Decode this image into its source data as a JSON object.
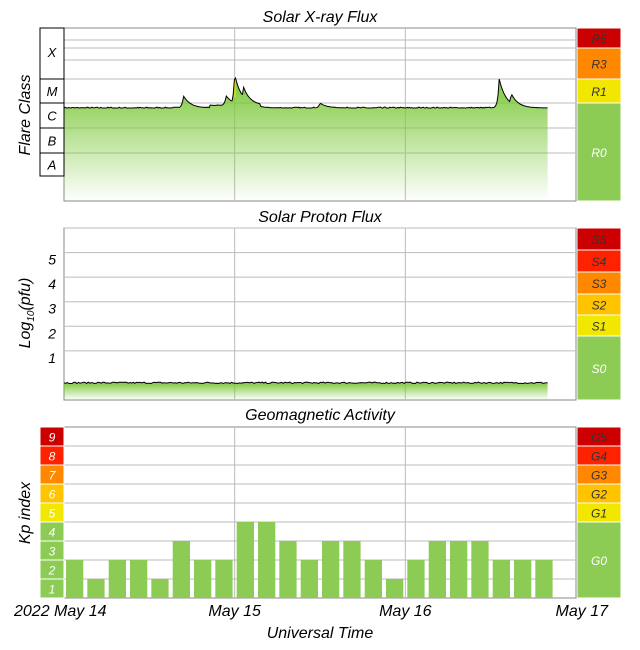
{
  "chart_data": [
    {
      "type": "area",
      "title": "Solar X-ray Flux",
      "ylabel": "Flare Class",
      "classes": [
        "X",
        "M",
        "C",
        "B",
        "A"
      ],
      "scale": [
        {
          "label": "R5",
          "color": "#cc0000"
        },
        {
          "label": "R3",
          "color": "#ff8800"
        },
        {
          "label": "R1",
          "color": "#f2e700"
        },
        {
          "label": "R0",
          "color": "#8ccc55"
        }
      ],
      "series": [
        {
          "start_date": "2022-05-14",
          "end_date": "2022-05-16T20:00",
          "baseline_level": 3.8,
          "events": [
            {
              "t": 0.7,
              "level": 4.3
            },
            {
              "t": 0.95,
              "level": 4.2
            },
            {
              "t": 1.0,
              "level": 5.1
            },
            {
              "t": 1.05,
              "level": 4.6
            },
            {
              "t": 1.5,
              "level": 4.0
            },
            {
              "t": 2.55,
              "level": 5.0
            },
            {
              "t": 2.62,
              "level": 4.4
            }
          ]
        }
      ]
    },
    {
      "type": "area",
      "title": "Solar Proton Flux",
      "ylabel": "Log10(pfu)",
      "ylabel_main": "Log",
      "ylabel_sub": "10",
      "ylabel_tail": "(pfu)",
      "yticks": [
        "1",
        "2",
        "3",
        "4",
        "5"
      ],
      "ylim": [
        -1,
        6
      ],
      "scale": [
        {
          "label": "S5",
          "color": "#cc0000"
        },
        {
          "label": "S4",
          "color": "#ff2200"
        },
        {
          "label": "S3",
          "color": "#ff8800"
        },
        {
          "label": "S2",
          "color": "#ffc300"
        },
        {
          "label": "S1",
          "color": "#f2e700"
        },
        {
          "label": "S0",
          "color": "#8ccc55"
        }
      ],
      "series": [
        {
          "level": -0.3
        }
      ]
    },
    {
      "type": "bar",
      "title": "Geomagnetic Activity",
      "ylabel": "Kp index",
      "xlabel": "Universal Time",
      "xticks": [
        "2022 May 14",
        "May 15",
        "May 16",
        "May 17"
      ],
      "yticks": [
        "1",
        "2",
        "3",
        "4",
        "5",
        "6",
        "7",
        "8",
        "9"
      ],
      "ylim": [
        0,
        9
      ],
      "bar_color": "#8ccc55",
      "values": [
        2,
        1,
        2,
        2,
        1,
        3,
        2,
        2,
        4,
        4,
        3,
        2,
        3,
        3,
        2,
        1,
        2,
        3,
        3,
        3,
        2,
        2,
        2
      ],
      "kp_colors": [
        "#8ccc55",
        "#8ccc55",
        "#8ccc55",
        "#8ccc55",
        "#f2e700",
        "#ffc300",
        "#ff8800",
        "#ff2200",
        "#cc0000"
      ],
      "scale": [
        {
          "label": "G5",
          "color": "#cc0000"
        },
        {
          "label": "G4",
          "color": "#ff2200"
        },
        {
          "label": "G3",
          "color": "#ff8800"
        },
        {
          "label": "G2",
          "color": "#ffc300"
        },
        {
          "label": "G1",
          "color": "#f2e700"
        },
        {
          "label": "G0",
          "color": "#8ccc55"
        }
      ]
    }
  ]
}
